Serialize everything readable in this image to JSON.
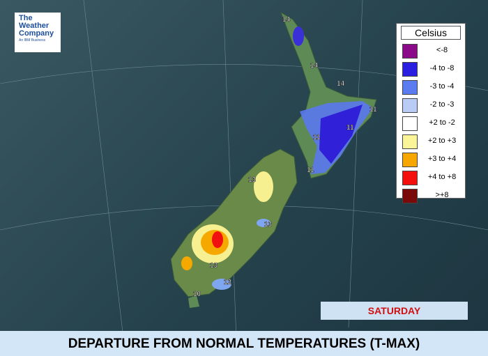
{
  "logo": {
    "line1": "The",
    "line2": "Weather",
    "line3": "Company",
    "tagline": "An IBM Business"
  },
  "legend": {
    "title": "Celsius",
    "items": [
      {
        "label": "<-8",
        "color": "#8a0a8a"
      },
      {
        "label": "-4 to -8",
        "color": "#2a1ee0"
      },
      {
        "label": "-3 to -4",
        "color": "#5a7cf0"
      },
      {
        "label": "-2 to -3",
        "color": "#b8ccf6"
      },
      {
        "label": "+2 to -2",
        "color": "#ffffff"
      },
      {
        "label": "+2 to +3",
        "color": "#fbf59a"
      },
      {
        "label": "+3 to +4",
        "color": "#f7a800"
      },
      {
        "label": "+4 to +8",
        "color": "#f51010"
      },
      {
        "label": ">+8",
        "color": "#7a0a0a"
      }
    ]
  },
  "map_labels": [
    14,
    14,
    14,
    11,
    11,
    11,
    11,
    13,
    13,
    13,
    12,
    10
  ],
  "day": "SATURDAY",
  "title": "DEPARTURE FROM NORMAL TEMPERATURES (T-MAX)"
}
